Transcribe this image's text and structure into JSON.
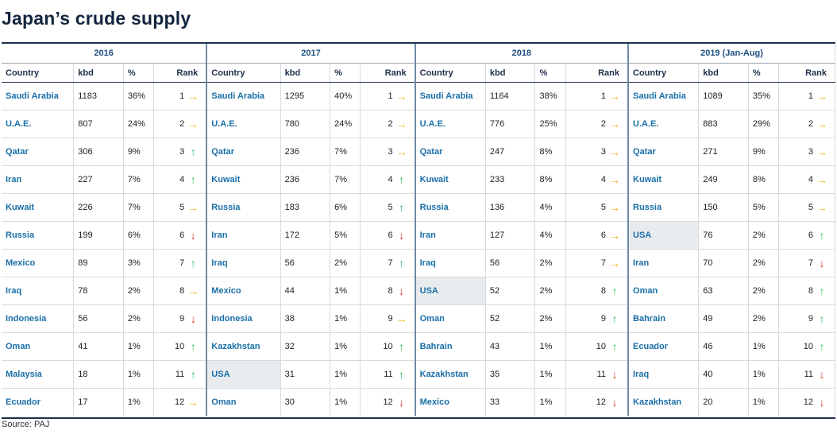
{
  "title": "Japan’s crude supply",
  "source": "Source: PAJ",
  "colors": {
    "up": "#2dbf5e",
    "down": "#d83b2b",
    "same": "#f0b21f",
    "country_text": "#1a6fa8",
    "highlight": "#e8ecef"
  },
  "icons": {
    "up": "up-arrow-icon",
    "down": "down-arrow-icon",
    "same": "right-arrow-icon"
  },
  "columns": [
    "Country",
    "kbd",
    "%",
    "Rank"
  ],
  "chart_data": {
    "type": "table",
    "title": "Japan’s crude supply",
    "periods": [
      {
        "label": "2016",
        "rows": [
          {
            "country": "Saudi Arabia",
            "kbd": "1183",
            "pct": "36%",
            "rank": "1",
            "trend": "same",
            "highlight": false
          },
          {
            "country": "U.A.E.",
            "kbd": "807",
            "pct": "24%",
            "rank": "2",
            "trend": "same",
            "highlight": false
          },
          {
            "country": "Qatar",
            "kbd": "306",
            "pct": "9%",
            "rank": "3",
            "trend": "up",
            "highlight": false
          },
          {
            "country": "Iran",
            "kbd": "227",
            "pct": "7%",
            "rank": "4",
            "trend": "up",
            "highlight": false
          },
          {
            "country": "Kuwait",
            "kbd": "226",
            "pct": "7%",
            "rank": "5",
            "trend": "same",
            "highlight": false
          },
          {
            "country": "Russia",
            "kbd": "199",
            "pct": "6%",
            "rank": "6",
            "trend": "down",
            "highlight": false
          },
          {
            "country": "Mexico",
            "kbd": "89",
            "pct": "3%",
            "rank": "7",
            "trend": "up",
            "highlight": false
          },
          {
            "country": "Iraq",
            "kbd": "78",
            "pct": "2%",
            "rank": "8",
            "trend": "same",
            "highlight": false
          },
          {
            "country": "Indonesia",
            "kbd": "56",
            "pct": "2%",
            "rank": "9",
            "trend": "down",
            "highlight": false
          },
          {
            "country": "Oman",
            "kbd": "41",
            "pct": "1%",
            "rank": "10",
            "trend": "up",
            "highlight": false
          },
          {
            "country": "Malaysia",
            "kbd": "18",
            "pct": "1%",
            "rank": "11",
            "trend": "up",
            "highlight": false
          },
          {
            "country": "Ecuador",
            "kbd": "17",
            "pct": "1%",
            "rank": "12",
            "trend": "same",
            "highlight": false
          }
        ]
      },
      {
        "label": "2017",
        "rows": [
          {
            "country": "Saudi Arabia",
            "kbd": "1295",
            "pct": "40%",
            "rank": "1",
            "trend": "same",
            "highlight": false
          },
          {
            "country": "U.A.E.",
            "kbd": "780",
            "pct": "24%",
            "rank": "2",
            "trend": "same",
            "highlight": false
          },
          {
            "country": "Qatar",
            "kbd": "236",
            "pct": "7%",
            "rank": "3",
            "trend": "same",
            "highlight": false
          },
          {
            "country": "Kuwait",
            "kbd": "236",
            "pct": "7%",
            "rank": "4",
            "trend": "up",
            "highlight": false
          },
          {
            "country": "Russia",
            "kbd": "183",
            "pct": "6%",
            "rank": "5",
            "trend": "up",
            "highlight": false
          },
          {
            "country": "Iran",
            "kbd": "172",
            "pct": "5%",
            "rank": "6",
            "trend": "down",
            "highlight": false
          },
          {
            "country": "Iraq",
            "kbd": "56",
            "pct": "2%",
            "rank": "7",
            "trend": "up",
            "highlight": false
          },
          {
            "country": "Mexico",
            "kbd": "44",
            "pct": "1%",
            "rank": "8",
            "trend": "down",
            "highlight": false
          },
          {
            "country": "Indonesia",
            "kbd": "38",
            "pct": "1%",
            "rank": "9",
            "trend": "same",
            "highlight": false
          },
          {
            "country": "Kazakhstan",
            "kbd": "32",
            "pct": "1%",
            "rank": "10",
            "trend": "up",
            "highlight": false
          },
          {
            "country": "USA",
            "kbd": "31",
            "pct": "1%",
            "rank": "11",
            "trend": "up",
            "highlight": true
          },
          {
            "country": "Oman",
            "kbd": "30",
            "pct": "1%",
            "rank": "12",
            "trend": "down",
            "highlight": false
          }
        ]
      },
      {
        "label": "2018",
        "rows": [
          {
            "country": "Saudi Arabia",
            "kbd": "1164",
            "pct": "38%",
            "rank": "1",
            "trend": "same",
            "highlight": false
          },
          {
            "country": "U.A.E.",
            "kbd": "776",
            "pct": "25%",
            "rank": "2",
            "trend": "same",
            "highlight": false
          },
          {
            "country": "Qatar",
            "kbd": "247",
            "pct": "8%",
            "rank": "3",
            "trend": "same",
            "highlight": false
          },
          {
            "country": "Kuwait",
            "kbd": "233",
            "pct": "8%",
            "rank": "4",
            "trend": "same",
            "highlight": false
          },
          {
            "country": "Russia",
            "kbd": "136",
            "pct": "4%",
            "rank": "5",
            "trend": "same",
            "highlight": false
          },
          {
            "country": "Iran",
            "kbd": "127",
            "pct": "4%",
            "rank": "6",
            "trend": "same",
            "highlight": false
          },
          {
            "country": "Iraq",
            "kbd": "56",
            "pct": "2%",
            "rank": "7",
            "trend": "same",
            "highlight": false
          },
          {
            "country": "USA",
            "kbd": "52",
            "pct": "2%",
            "rank": "8",
            "trend": "up",
            "highlight": true
          },
          {
            "country": "Oman",
            "kbd": "52",
            "pct": "2%",
            "rank": "9",
            "trend": "up",
            "highlight": false
          },
          {
            "country": "Bahrain",
            "kbd": "43",
            "pct": "1%",
            "rank": "10",
            "trend": "up",
            "highlight": false
          },
          {
            "country": "Kazakhstan",
            "kbd": "35",
            "pct": "1%",
            "rank": "11",
            "trend": "down",
            "highlight": false
          },
          {
            "country": "Mexico",
            "kbd": "33",
            "pct": "1%",
            "rank": "12",
            "trend": "down",
            "highlight": false
          }
        ]
      },
      {
        "label": "2019 (Jan-Aug)",
        "rows": [
          {
            "country": "Saudi Arabia",
            "kbd": "1089",
            "pct": "35%",
            "rank": "1",
            "trend": "same",
            "highlight": false
          },
          {
            "country": "U.A.E.",
            "kbd": "883",
            "pct": "29%",
            "rank": "2",
            "trend": "same",
            "highlight": false
          },
          {
            "country": "Qatar",
            "kbd": "271",
            "pct": "9%",
            "rank": "3",
            "trend": "same",
            "highlight": false
          },
          {
            "country": "Kuwait",
            "kbd": "249",
            "pct": "8%",
            "rank": "4",
            "trend": "same",
            "highlight": false
          },
          {
            "country": "Russia",
            "kbd": "150",
            "pct": "5%",
            "rank": "5",
            "trend": "same",
            "highlight": false
          },
          {
            "country": "USA",
            "kbd": "76",
            "pct": "2%",
            "rank": "6",
            "trend": "up",
            "highlight": true
          },
          {
            "country": "Iran",
            "kbd": "70",
            "pct": "2%",
            "rank": "7",
            "trend": "down",
            "highlight": false
          },
          {
            "country": "Oman",
            "kbd": "63",
            "pct": "2%",
            "rank": "8",
            "trend": "up",
            "highlight": false
          },
          {
            "country": "Bahrain",
            "kbd": "49",
            "pct": "2%",
            "rank": "9",
            "trend": "up",
            "highlight": false
          },
          {
            "country": "Ecuador",
            "kbd": "46",
            "pct": "1%",
            "rank": "10",
            "trend": "up",
            "highlight": false
          },
          {
            "country": "Iraq",
            "kbd": "40",
            "pct": "1%",
            "rank": "11",
            "trend": "down",
            "highlight": false
          },
          {
            "country": "Kazakhstan",
            "kbd": "20",
            "pct": "1%",
            "rank": "12",
            "trend": "down",
            "highlight": false
          }
        ]
      }
    ]
  }
}
